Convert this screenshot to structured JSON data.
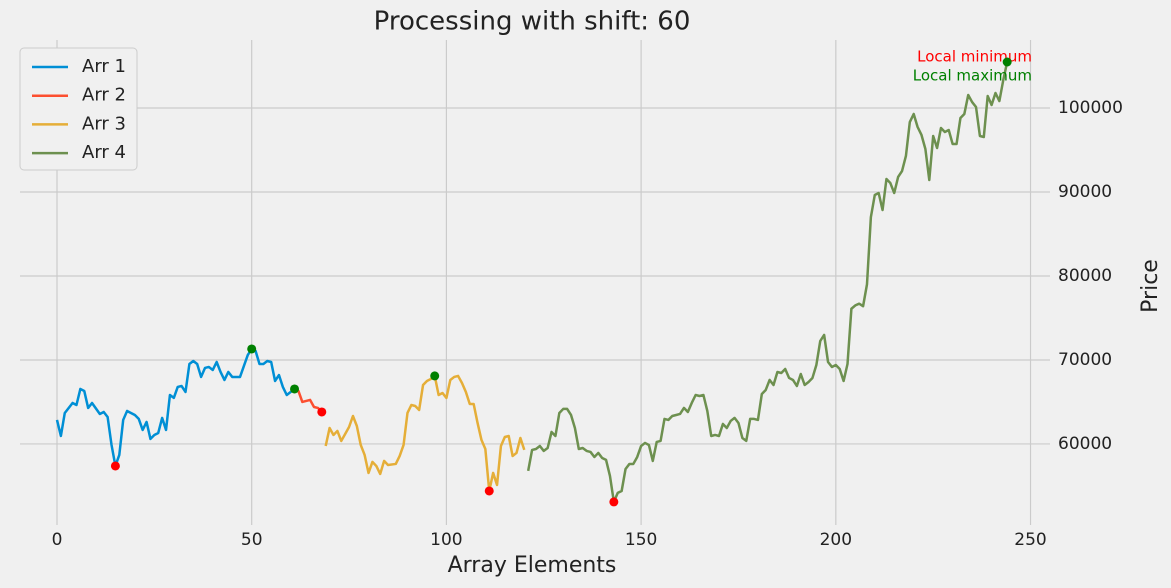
{
  "chart_data": {
    "type": "line",
    "title": "Processing with shift: 60",
    "x_label": "Array Elements",
    "y_label": "Price",
    "xlim": [
      -9.5,
      255
    ],
    "ylim": [
      50350,
      108100
    ],
    "xticks": [
      0,
      50,
      100,
      150,
      200,
      250
    ],
    "yticks": [
      60000,
      70000,
      80000,
      90000,
      100000
    ],
    "grid": true,
    "y_axis_side": "right",
    "legend": "upper left",
    "series": [
      {
        "name": "Arr 1",
        "color": "#008fd5",
        "x": [
          0,
          1,
          2,
          4,
          5,
          6,
          7,
          8,
          9,
          11,
          12,
          13,
          14,
          15,
          16,
          17,
          18,
          20,
          21,
          22,
          23,
          24,
          25,
          26,
          27,
          28,
          29,
          30,
          31,
          32,
          33,
          34,
          35,
          36,
          37,
          38,
          39,
          40,
          41,
          42,
          43,
          44,
          45,
          47,
          48,
          49,
          50,
          51,
          52,
          53,
          54,
          55,
          56,
          57,
          58,
          59,
          60,
          61
        ],
        "values": [
          62857,
          60952,
          63690,
          64880,
          64640,
          66550,
          66310,
          64290,
          64880,
          63570,
          63810,
          63210,
          59900,
          57381,
          58690,
          62860,
          63930,
          63450,
          62980,
          61670,
          62620,
          60600,
          61070,
          61310,
          63100,
          61670,
          65830,
          65480,
          66790,
          66900,
          66190,
          69520,
          69880,
          69520,
          67980,
          69050,
          69170,
          68810,
          69760,
          68570,
          67620,
          68570,
          67980,
          67980,
          69290,
          70600,
          71310,
          71070,
          69520,
          69520,
          69880,
          69760,
          67500,
          68210,
          66790,
          65830,
          66190,
          66550
        ]
      },
      {
        "name": "Arr 2",
        "color": "#fc4f30",
        "x": [
          61,
          62,
          63,
          64,
          65,
          66,
          67,
          68
        ],
        "values": [
          66550,
          66310,
          65000,
          65120,
          65240,
          64400,
          64290,
          63810
        ]
      },
      {
        "name": "Arr 3",
        "color": "#e5ae38",
        "x": [
          69,
          70,
          71,
          72,
          73,
          74,
          75,
          76,
          77,
          78,
          79,
          80,
          81,
          82,
          83,
          84,
          85,
          87,
          88,
          89,
          90,
          91,
          92,
          93,
          94,
          95,
          96,
          97,
          98,
          99,
          100,
          101,
          102,
          103,
          104,
          105,
          106,
          107,
          108,
          109,
          110,
          111,
          112,
          113,
          114,
          115,
          116,
          117,
          118,
          119,
          120
        ],
        "values": [
          59760,
          61900,
          61070,
          61550,
          60360,
          61190,
          62020,
          63330,
          62140,
          59880,
          58690,
          56550,
          57860,
          57380,
          56430,
          57980,
          57500,
          57620,
          58570,
          59880,
          63690,
          64640,
          64520,
          64050,
          67020,
          67500,
          67740,
          68100,
          65830,
          66070,
          65480,
          67620,
          67980,
          68100,
          67260,
          66190,
          64760,
          64760,
          62500,
          60480,
          59400,
          54400,
          56550,
          55120,
          59760,
          60830,
          60950,
          58570,
          58930,
          60710,
          59290
        ]
      },
      {
        "name": "Arr 4",
        "color": "#6d904f",
        "x": [
          121,
          122,
          123,
          124,
          125,
          126,
          127,
          128,
          129,
          130,
          131,
          132,
          133,
          134,
          135,
          136,
          137,
          138,
          139,
          140,
          141,
          142,
          143,
          144,
          145,
          146,
          147,
          148,
          149,
          150,
          151,
          152,
          153,
          154,
          155,
          156,
          157,
          158,
          159,
          160,
          161,
          162,
          163,
          164,
          165,
          166,
          167,
          168,
          169,
          170,
          171,
          172,
          173,
          174,
          175,
          176,
          177,
          178,
          179,
          180,
          181,
          182,
          183,
          184,
          185,
          186,
          187,
          188,
          189,
          190,
          191,
          192,
          193,
          194,
          195,
          196,
          197,
          198,
          199,
          200,
          201,
          202,
          203,
          204,
          205,
          206,
          207,
          208,
          209,
          210,
          211,
          212,
          213,
          214,
          215,
          216,
          217,
          218,
          219,
          220,
          221,
          222,
          223,
          224,
          225,
          226,
          227,
          228,
          229,
          230,
          231,
          232,
          233,
          234,
          235,
          236,
          237,
          238,
          239,
          240,
          241,
          242,
          243,
          244
        ],
        "values": [
          56790,
          59290,
          59400,
          59760,
          59170,
          59520,
          61430,
          60950,
          63690,
          64170,
          64170,
          63450,
          61900,
          59400,
          59520,
          59170,
          59050,
          58450,
          58930,
          58330,
          58100,
          56190,
          53100,
          54170,
          54400,
          57020,
          57620,
          57620,
          58450,
          59760,
          60120,
          59880,
          57980,
          60240,
          60360,
          62980,
          62860,
          63330,
          63450,
          63570,
          64290,
          63810,
          64880,
          65830,
          65710,
          65830,
          63930,
          60950,
          61070,
          60950,
          62380,
          61900,
          62740,
          63100,
          62500,
          60710,
          60360,
          62980,
          62980,
          62860,
          65950,
          66430,
          67620,
          67020,
          68570,
          68450,
          68930,
          67860,
          67620,
          66900,
          68330,
          67020,
          67380,
          67860,
          69400,
          72260,
          72980,
          69760,
          69170,
          69400,
          68930,
          67500,
          69520,
          76100,
          76500,
          76700,
          76400,
          79000,
          87000,
          89640,
          89880,
          87860,
          91550,
          91070,
          89880,
          91790,
          92500,
          94290,
          98330,
          99290,
          97740,
          96790,
          95120,
          91430,
          96670,
          95240,
          97620,
          97140,
          97380,
          95710,
          95710,
          98810,
          99290,
          101550,
          100710,
          100120,
          96670,
          96550,
          101430,
          100360,
          101790,
          100830,
          103330,
          105480
        ]
      }
    ],
    "markers": [
      {
        "name": "Local minimum",
        "color": "#ff0000",
        "x": [
          15,
          68,
          111,
          143
        ],
        "values": [
          57381,
          63810,
          54400,
          53100
        ]
      },
      {
        "name": "Local maximum",
        "color": "#008000",
        "x": [
          50,
          61,
          97,
          244
        ],
        "values": [
          71310,
          66550,
          68100,
          105480
        ]
      }
    ]
  }
}
